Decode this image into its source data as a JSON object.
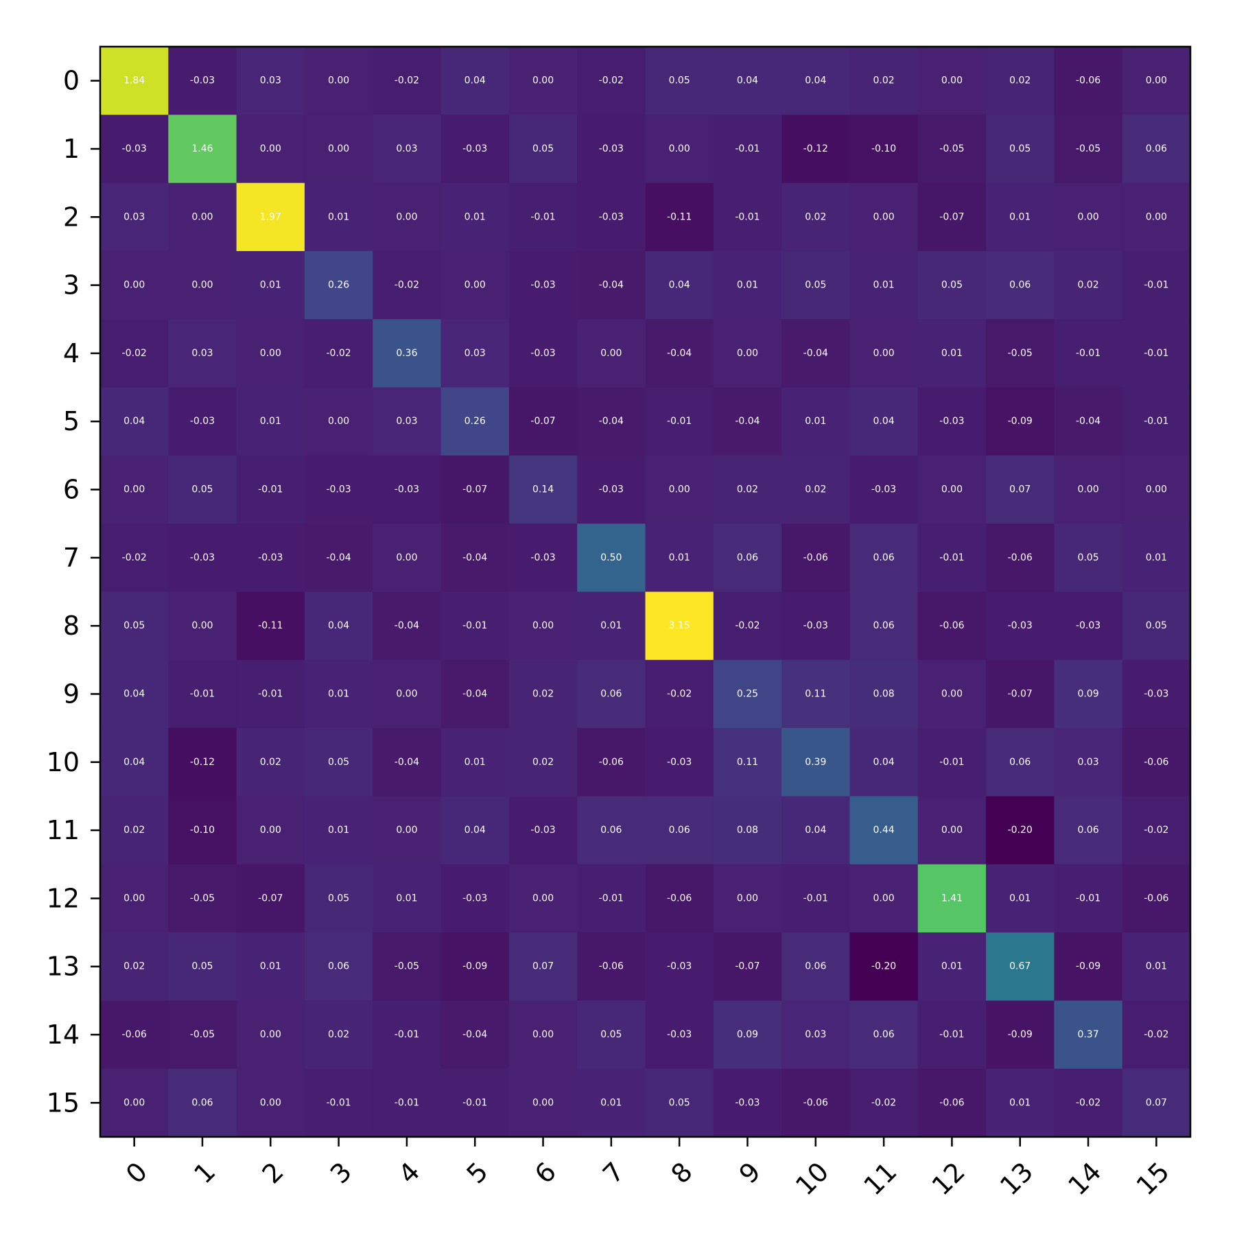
{
  "chart_data": {
    "type": "heatmap",
    "title": "",
    "xlabel": "",
    "ylabel": "",
    "colormap": "viridis",
    "color_range": [
      -0.2,
      2.0
    ],
    "value_format": "2 decimals",
    "annotation_color": "#ffffff",
    "x_categories": [
      "0",
      "1",
      "2",
      "3",
      "4",
      "5",
      "6",
      "7",
      "8",
      "9",
      "10",
      "11",
      "12",
      "13",
      "14",
      "15"
    ],
    "y_categories": [
      "0",
      "1",
      "2",
      "3",
      "4",
      "5",
      "6",
      "7",
      "8",
      "9",
      "10",
      "11",
      "12",
      "13",
      "14",
      "15"
    ],
    "x_tick_rotation": 45,
    "grid": false,
    "legend": "none",
    "values": [
      [
        1.84,
        -0.03,
        0.03,
        -0.0,
        -0.02,
        0.04,
        0.0,
        -0.02,
        0.05,
        0.04,
        0.04,
        0.02,
        0.0,
        0.02,
        -0.06,
        -0.0
      ],
      [
        -0.03,
        1.46,
        0.0,
        -0.0,
        0.03,
        -0.03,
        0.05,
        -0.03,
        0.0,
        -0.01,
        -0.12,
        -0.1,
        -0.05,
        0.05,
        -0.05,
        0.06
      ],
      [
        0.03,
        0.0,
        1.97,
        0.01,
        -0.0,
        0.01,
        -0.01,
        -0.03,
        -0.11,
        -0.01,
        0.02,
        0.0,
        -0.07,
        0.01,
        -0.0,
        -0.0
      ],
      [
        -0.0,
        -0.0,
        0.01,
        0.26,
        -0.02,
        -0.0,
        -0.03,
        -0.04,
        0.04,
        0.01,
        0.05,
        0.01,
        0.05,
        0.06,
        0.02,
        -0.01
      ],
      [
        -0.02,
        0.03,
        -0.0,
        -0.02,
        0.36,
        0.03,
        -0.03,
        0.0,
        -0.04,
        0.0,
        -0.04,
        -0.0,
        0.01,
        -0.05,
        -0.01,
        -0.01
      ],
      [
        0.04,
        -0.03,
        0.01,
        -0.0,
        0.03,
        0.26,
        -0.07,
        -0.04,
        -0.01,
        -0.04,
        0.01,
        0.04,
        -0.03,
        -0.09,
        -0.04,
        -0.01
      ],
      [
        0.0,
        0.05,
        -0.01,
        -0.03,
        -0.03,
        -0.07,
        0.14,
        -0.03,
        -0.0,
        0.02,
        0.02,
        -0.03,
        0.0,
        0.07,
        0.0,
        0.0
      ],
      [
        -0.02,
        -0.03,
        -0.03,
        -0.04,
        0.0,
        -0.04,
        -0.03,
        0.5,
        0.01,
        0.06,
        -0.06,
        0.06,
        -0.01,
        -0.06,
        0.05,
        0.01
      ],
      [
        0.05,
        0.0,
        -0.11,
        0.04,
        -0.04,
        -0.01,
        -0.0,
        0.01,
        3.15,
        -0.02,
        -0.03,
        0.06,
        -0.06,
        -0.03,
        -0.03,
        0.05
      ],
      [
        0.04,
        -0.01,
        -0.01,
        0.01,
        0.0,
        -0.04,
        0.02,
        0.06,
        -0.02,
        0.25,
        0.11,
        0.08,
        0.0,
        -0.07,
        0.09,
        -0.03
      ],
      [
        0.04,
        -0.12,
        0.02,
        0.05,
        -0.04,
        0.01,
        0.02,
        -0.06,
        -0.03,
        0.11,
        0.39,
        0.04,
        -0.01,
        0.06,
        0.03,
        -0.06
      ],
      [
        0.02,
        -0.1,
        0.0,
        0.01,
        -0.0,
        0.04,
        -0.03,
        0.06,
        0.06,
        0.08,
        0.04,
        0.44,
        0.0,
        -0.2,
        0.06,
        -0.02
      ],
      [
        0.0,
        -0.05,
        -0.07,
        0.05,
        0.01,
        -0.03,
        0.0,
        -0.01,
        -0.06,
        0.0,
        -0.01,
        0.0,
        1.41,
        0.01,
        -0.01,
        -0.06
      ],
      [
        0.02,
        0.05,
        0.01,
        0.06,
        -0.05,
        -0.09,
        0.07,
        -0.06,
        -0.03,
        -0.07,
        0.06,
        -0.2,
        0.01,
        0.67,
        -0.09,
        0.01
      ],
      [
        -0.06,
        -0.05,
        -0.0,
        0.02,
        -0.01,
        -0.04,
        0.0,
        0.05,
        -0.03,
        0.09,
        0.03,
        0.06,
        -0.01,
        -0.09,
        0.37,
        -0.02
      ],
      [
        -0.0,
        0.06,
        -0.0,
        -0.01,
        -0.01,
        -0.01,
        0.0,
        0.01,
        0.05,
        -0.03,
        -0.06,
        -0.02,
        -0.06,
        0.01,
        -0.02,
        0.07
      ]
    ]
  }
}
